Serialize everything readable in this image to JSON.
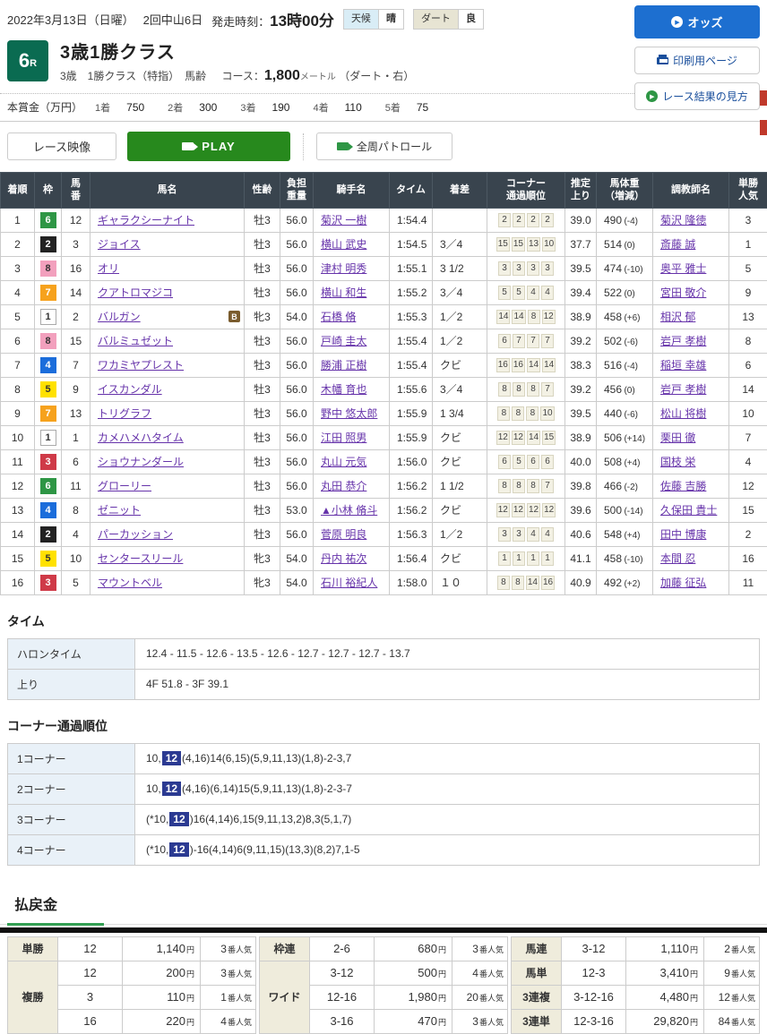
{
  "header": {
    "date": "2022年3月13日（日曜）",
    "meeting": "2回中山6日",
    "start_label": "発走時刻：",
    "start_time": "13時00分",
    "weather_label": "天候",
    "weather_value": "晴",
    "track_label": "ダート",
    "track_value": "良",
    "odds_button": "オッズ",
    "print_button": "印刷用ページ",
    "guide_button": "レース結果の見方"
  },
  "race": {
    "number": "6",
    "number_suffix": "R",
    "title": "3歳1勝クラス",
    "conditions": "3歳　1勝クラス（特指）　馬齢",
    "course_label": "コース：",
    "course_value": "1,800",
    "course_unit": "メートル",
    "course_note": "（ダート・右）"
  },
  "prize": {
    "label": "本賞金（万円）",
    "items": [
      {
        "place": "1着",
        "amount": "750"
      },
      {
        "place": "2着",
        "amount": "300"
      },
      {
        "place": "3着",
        "amount": "190"
      },
      {
        "place": "4着",
        "amount": "110"
      },
      {
        "place": "5着",
        "amount": "75"
      }
    ]
  },
  "video": {
    "race_video": "レース映像",
    "play": "PLAY",
    "patrol": "全周パトロール"
  },
  "results": {
    "headers": [
      "着順",
      "枠",
      "馬\n番",
      "馬名",
      "性齢",
      "負担\n重量",
      "騎手名",
      "タイム",
      "着差",
      "コーナー\n通過順位",
      "推定\n上り",
      "馬体重\n（増減）",
      "調教師名",
      "単勝\n人気"
    ],
    "rows": [
      {
        "pos": "1",
        "waku": "6",
        "num": "12",
        "horse": "ギャラクシーナイト",
        "b": false,
        "sexage": "牡3",
        "weight": "56.0",
        "jockey": "菊沢 一樹",
        "time": "1:54.4",
        "margin": "",
        "corners": [
          "2",
          "2",
          "2",
          "2"
        ],
        "last3f": "39.0",
        "bw": "490",
        "bwd": "(-4)",
        "trainer": "菊沢 隆徳",
        "pop": "3"
      },
      {
        "pos": "2",
        "waku": "2",
        "num": "3",
        "horse": "ジョイス",
        "b": false,
        "sexage": "牡3",
        "weight": "56.0",
        "jockey": "横山 武史",
        "time": "1:54.5",
        "margin": "3／4",
        "corners": [
          "15",
          "15",
          "13",
          "10"
        ],
        "last3f": "37.7",
        "bw": "514",
        "bwd": "(0)",
        "trainer": "斎藤 誠",
        "pop": "1"
      },
      {
        "pos": "3",
        "waku": "8",
        "num": "16",
        "horse": "オリ",
        "b": false,
        "sexage": "牡3",
        "weight": "56.0",
        "jockey": "津村 明秀",
        "time": "1:55.1",
        "margin": "3 1/2",
        "corners": [
          "3",
          "3",
          "3",
          "3"
        ],
        "last3f": "39.5",
        "bw": "474",
        "bwd": "(-10)",
        "trainer": "奥平 雅士",
        "pop": "5"
      },
      {
        "pos": "4",
        "waku": "7",
        "num": "14",
        "horse": "クアトロマジコ",
        "b": false,
        "sexage": "牡3",
        "weight": "56.0",
        "jockey": "横山 和生",
        "time": "1:55.2",
        "margin": "3／4",
        "corners": [
          "5",
          "5",
          "4",
          "4"
        ],
        "last3f": "39.4",
        "bw": "522",
        "bwd": "(0)",
        "trainer": "宮田 敬介",
        "pop": "9"
      },
      {
        "pos": "5",
        "waku": "1",
        "num": "2",
        "horse": "バルガン",
        "b": true,
        "sexage": "牝3",
        "weight": "54.0",
        "jockey": "石橋 脩",
        "time": "1:55.3",
        "margin": "1／2",
        "corners": [
          "14",
          "14",
          "8",
          "12"
        ],
        "last3f": "38.9",
        "bw": "458",
        "bwd": "(+6)",
        "trainer": "相沢 郁",
        "pop": "13"
      },
      {
        "pos": "6",
        "waku": "8",
        "num": "15",
        "horse": "バルミュゼット",
        "b": false,
        "sexage": "牡3",
        "weight": "56.0",
        "jockey": "戸崎 圭太",
        "time": "1:55.4",
        "margin": "1／2",
        "corners": [
          "6",
          "7",
          "7",
          "7"
        ],
        "last3f": "39.2",
        "bw": "502",
        "bwd": "(-6)",
        "trainer": "岩戸 孝樹",
        "pop": "8"
      },
      {
        "pos": "7",
        "waku": "4",
        "num": "7",
        "horse": "ワカミヤプレスト",
        "b": false,
        "sexage": "牡3",
        "weight": "56.0",
        "jockey": "勝浦 正樹",
        "time": "1:55.4",
        "margin": "クビ",
        "corners": [
          "16",
          "16",
          "14",
          "14"
        ],
        "last3f": "38.3",
        "bw": "516",
        "bwd": "(-4)",
        "trainer": "稲垣 幸雄",
        "pop": "6"
      },
      {
        "pos": "8",
        "waku": "5",
        "num": "9",
        "horse": "イスカンダル",
        "b": false,
        "sexage": "牡3",
        "weight": "56.0",
        "jockey": "木幡 育也",
        "time": "1:55.6",
        "margin": "3／4",
        "corners": [
          "8",
          "8",
          "8",
          "7"
        ],
        "last3f": "39.2",
        "bw": "456",
        "bwd": "(0)",
        "trainer": "岩戸 孝樹",
        "pop": "14"
      },
      {
        "pos": "9",
        "waku": "7",
        "num": "13",
        "horse": "トリグラフ",
        "b": false,
        "sexage": "牡3",
        "weight": "56.0",
        "jockey": "野中 悠太郎",
        "time": "1:55.9",
        "margin": "1 3/4",
        "corners": [
          "8",
          "8",
          "8",
          "10"
        ],
        "last3f": "39.5",
        "bw": "440",
        "bwd": "(-6)",
        "trainer": "松山 将樹",
        "pop": "10"
      },
      {
        "pos": "10",
        "waku": "1",
        "num": "1",
        "horse": "カメハメハタイム",
        "b": false,
        "sexage": "牡3",
        "weight": "56.0",
        "jockey": "江田 照男",
        "time": "1:55.9",
        "margin": "クビ",
        "corners": [
          "12",
          "12",
          "14",
          "15"
        ],
        "last3f": "38.9",
        "bw": "506",
        "bwd": "(+14)",
        "trainer": "栗田 徹",
        "pop": "7"
      },
      {
        "pos": "11",
        "waku": "3",
        "num": "6",
        "horse": "ショウナンダール",
        "b": false,
        "sexage": "牡3",
        "weight": "56.0",
        "jockey": "丸山 元気",
        "time": "1:56.0",
        "margin": "クビ",
        "corners": [
          "6",
          "5",
          "6",
          "6"
        ],
        "last3f": "40.0",
        "bw": "508",
        "bwd": "(+4)",
        "trainer": "国枝 栄",
        "pop": "4"
      },
      {
        "pos": "12",
        "waku": "6",
        "num": "11",
        "horse": "グローリー",
        "b": false,
        "sexage": "牡3",
        "weight": "56.0",
        "jockey": "丸田 恭介",
        "time": "1:56.2",
        "margin": "1 1/2",
        "corners": [
          "8",
          "8",
          "8",
          "7"
        ],
        "last3f": "39.8",
        "bw": "466",
        "bwd": "(-2)",
        "trainer": "佐藤 吉勝",
        "pop": "12"
      },
      {
        "pos": "13",
        "waku": "4",
        "num": "8",
        "horse": "ゼニット",
        "b": false,
        "sexage": "牡3",
        "weight": "53.0",
        "jockey": "▲小林 脩斗",
        "time": "1:56.2",
        "margin": "クビ",
        "corners": [
          "12",
          "12",
          "12",
          "12"
        ],
        "last3f": "39.6",
        "bw": "500",
        "bwd": "(-14)",
        "trainer": "久保田 貴士",
        "pop": "15"
      },
      {
        "pos": "14",
        "waku": "2",
        "num": "4",
        "horse": "パーカッション",
        "b": false,
        "sexage": "牡3",
        "weight": "56.0",
        "jockey": "菅原 明良",
        "time": "1:56.3",
        "margin": "1／2",
        "corners": [
          "3",
          "3",
          "4",
          "4"
        ],
        "last3f": "40.6",
        "bw": "548",
        "bwd": "(+4)",
        "trainer": "田中 博康",
        "pop": "2"
      },
      {
        "pos": "15",
        "waku": "5",
        "num": "10",
        "horse": "センタースリール",
        "b": false,
        "sexage": "牝3",
        "weight": "54.0",
        "jockey": "丹内 祐次",
        "time": "1:56.4",
        "margin": "クビ",
        "corners": [
          "1",
          "1",
          "1",
          "1"
        ],
        "last3f": "41.1",
        "bw": "458",
        "bwd": "(-10)",
        "trainer": "本間 忍",
        "pop": "16"
      },
      {
        "pos": "16",
        "waku": "3",
        "num": "5",
        "horse": "マウントベル",
        "b": false,
        "sexage": "牝3",
        "weight": "54.0",
        "jockey": "石川 裕紀人",
        "time": "1:58.0",
        "margin": "１０",
        "corners": [
          "8",
          "8",
          "14",
          "16"
        ],
        "last3f": "40.9",
        "bw": "492",
        "bwd": "(+2)",
        "trainer": "加藤 征弘",
        "pop": "11"
      }
    ]
  },
  "time_section": {
    "title": "タイム",
    "rows": [
      {
        "label": "ハロンタイム",
        "value": "12.4 - 11.5 - 12.6 - 13.5 - 12.6 - 12.7 - 12.7 - 12.7 - 13.7"
      },
      {
        "label": "上り",
        "value": "4F 51.8 - 3F 39.1"
      }
    ]
  },
  "corner_section": {
    "title": "コーナー通過順位",
    "rows": [
      {
        "label": "1コーナー",
        "pre": "10,",
        "hl": "12",
        "post": "(4,16)14(6,15)(5,9,11,13)(1,8)-2-3,7"
      },
      {
        "label": "2コーナー",
        "pre": "10,",
        "hl": "12",
        "post": "(4,16)(6,14)15(5,9,11,13)(1,8)-2-3-7"
      },
      {
        "label": "3コーナー",
        "pre": "(*10,",
        "hl": "12",
        "post": ")16(4,14)6,15(9,11,13,2)8,3(5,1,7)"
      },
      {
        "label": "4コーナー",
        "pre": "(*10,",
        "hl": "12",
        "post": ")-16(4,14)6(9,11,15)(13,3)(8,2)7,1-5"
      }
    ]
  },
  "payout": {
    "title": "払戻金",
    "yen": "円",
    "pop_suffix": "番人気",
    "columns": [
      [
        {
          "label": "単勝",
          "rows": [
            {
              "comb": "12",
              "amount": "1,140",
              "pop": "3"
            }
          ]
        },
        {
          "label": "複勝",
          "rows": [
            {
              "comb": "12",
              "amount": "200",
              "pop": "3"
            },
            {
              "comb": "3",
              "amount": "110",
              "pop": "1"
            },
            {
              "comb": "16",
              "amount": "220",
              "pop": "4"
            }
          ]
        }
      ],
      [
        {
          "label": "枠連",
          "rows": [
            {
              "comb": "2-6",
              "amount": "680",
              "pop": "3"
            }
          ]
        },
        {
          "label": "ワイド",
          "rows": [
            {
              "comb": "3-12",
              "amount": "500",
              "pop": "4"
            },
            {
              "comb": "12-16",
              "amount": "1,980",
              "pop": "20"
            },
            {
              "comb": "3-16",
              "amount": "470",
              "pop": "3"
            }
          ]
        }
      ],
      [
        {
          "label": "馬連",
          "rows": [
            {
              "comb": "3-12",
              "amount": "1,110",
              "pop": "2"
            }
          ]
        },
        {
          "label": "馬単",
          "rows": [
            {
              "comb": "12-3",
              "amount": "3,410",
              "pop": "9"
            }
          ]
        },
        {
          "label": "3連複",
          "rows": [
            {
              "comb": "3-12-16",
              "amount": "4,480",
              "pop": "12"
            }
          ]
        },
        {
          "label": "3連単",
          "rows": [
            {
              "comb": "12-3-16",
              "amount": "29,820",
              "pop": "84"
            }
          ]
        }
      ]
    ]
  },
  "colors": {
    "race_badge_green": "#0a6b51",
    "play_green": "#27891d",
    "odds_blue": "#1d6fd0",
    "table_header_bg": "#39444e",
    "corner_highlight_blue": "#2b3a92",
    "payout_label_bg": "#efecdc",
    "waku": {
      "1": "#ffffff",
      "2": "#222222",
      "3": "#cf3a48",
      "4": "#1b6ddb",
      "5": "#ffe100",
      "6": "#2e9645",
      "7": "#f6a21d",
      "8": "#f2a0bd"
    },
    "waku_dark_text": [
      "1",
      "5",
      "8"
    ]
  }
}
